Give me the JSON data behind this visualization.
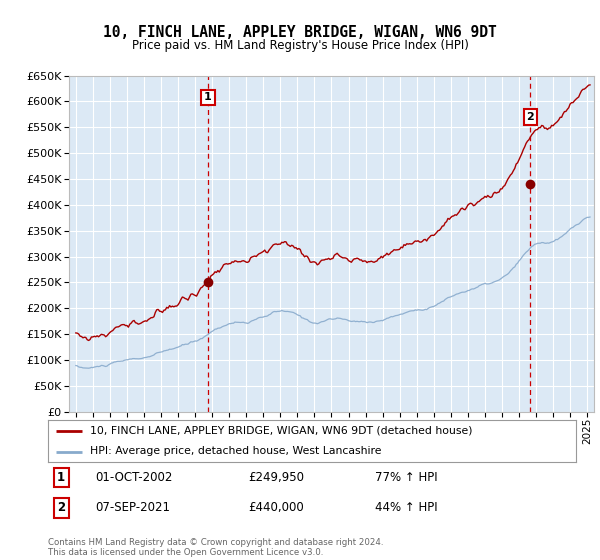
{
  "title": "10, FINCH LANE, APPLEY BRIDGE, WIGAN, WN6 9DT",
  "subtitle": "Price paid vs. HM Land Registry's House Price Index (HPI)",
  "legend_property": "10, FINCH LANE, APPLEY BRIDGE, WIGAN, WN6 9DT (detached house)",
  "legend_hpi": "HPI: Average price, detached house, West Lancashire",
  "sale1_date": "01-OCT-2002",
  "sale1_price": "£249,950",
  "sale1_hpi": "77% ↑ HPI",
  "sale2_date": "07-SEP-2021",
  "sale2_price": "£440,000",
  "sale2_hpi": "44% ↑ HPI",
  "footer": "Contains HM Land Registry data © Crown copyright and database right 2024.\nThis data is licensed under the Open Government Licence v3.0.",
  "bg_color": "#dce9f5",
  "grid_color": "#ffffff",
  "property_line_color": "#aa0000",
  "hpi_line_color": "#88aacc",
  "sale1_x": 2002.75,
  "sale1_y": 249950,
  "sale2_x": 2021.67,
  "sale2_y": 440000,
  "ylim": [
    0,
    650000
  ],
  "yticks": [
    0,
    50000,
    100000,
    150000,
    200000,
    250000,
    300000,
    350000,
    400000,
    450000,
    500000,
    550000,
    600000,
    650000
  ],
  "xlim": [
    1994.6,
    2025.4
  ]
}
